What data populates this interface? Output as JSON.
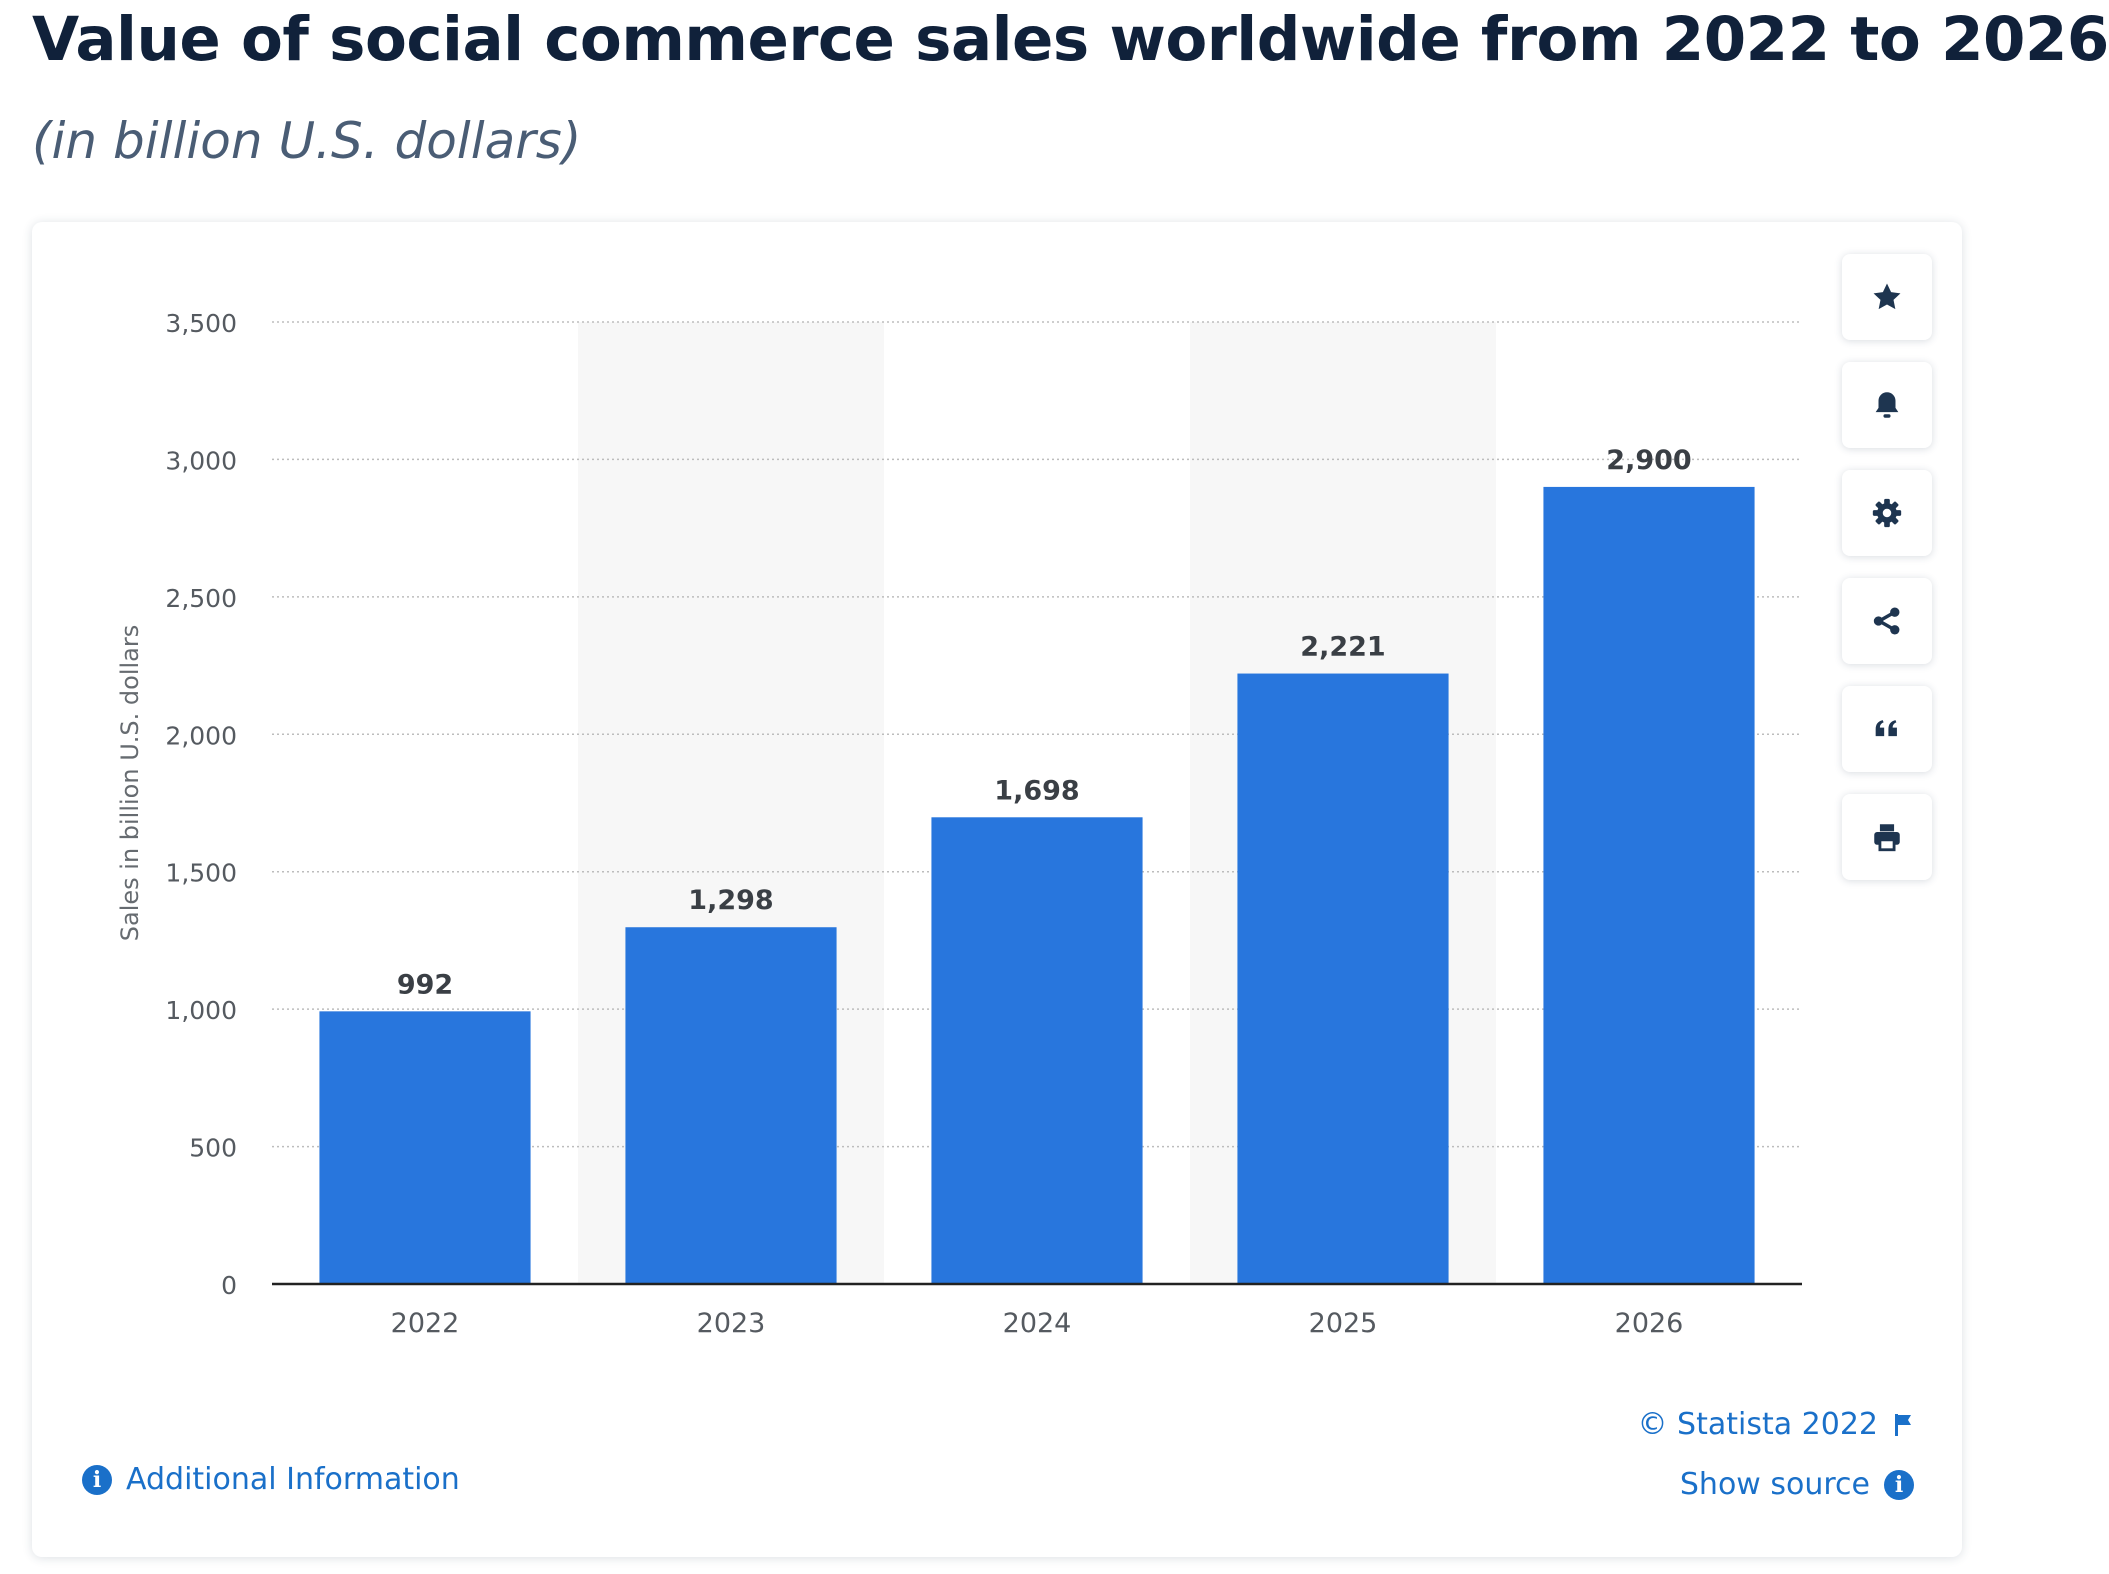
{
  "header": {
    "title": "Value of social commerce sales worldwide from 2022 to 2026",
    "subtitle": "(in billion U.S. dollars)"
  },
  "chart_data": {
    "type": "bar",
    "categories": [
      "2022",
      "2023",
      "2024",
      "2025",
      "2026"
    ],
    "values": [
      992,
      1298,
      1698,
      2221,
      2900
    ],
    "value_labels": [
      "992",
      "1,298",
      "1,698",
      "2,221",
      "2,900"
    ],
    "ylabel": "Sales in billion U.S. dollars",
    "ylim": [
      0,
      3500
    ],
    "yticks": [
      0,
      500,
      1000,
      1500,
      2000,
      2500,
      3000,
      3500
    ],
    "ytick_labels": [
      "0",
      "500",
      "1,000",
      "1,500",
      "2,000",
      "2,500",
      "3,000",
      "3,500"
    ],
    "grid": true,
    "bar_color": "#2876dd",
    "alt_column_shading": "#f7f7f7"
  },
  "toolbar": {
    "buttons": [
      {
        "icon": "star-icon"
      },
      {
        "icon": "bell-icon"
      },
      {
        "icon": "gear-icon"
      },
      {
        "icon": "share-icon"
      },
      {
        "icon": "quote-icon"
      },
      {
        "icon": "print-icon"
      }
    ]
  },
  "footer": {
    "credit": "© Statista 2022",
    "show_source": "Show source",
    "additional_info": "Additional Information"
  },
  "colors": {
    "accent": "#1a70c9",
    "title": "#10213a",
    "icon": "#1e3550"
  }
}
